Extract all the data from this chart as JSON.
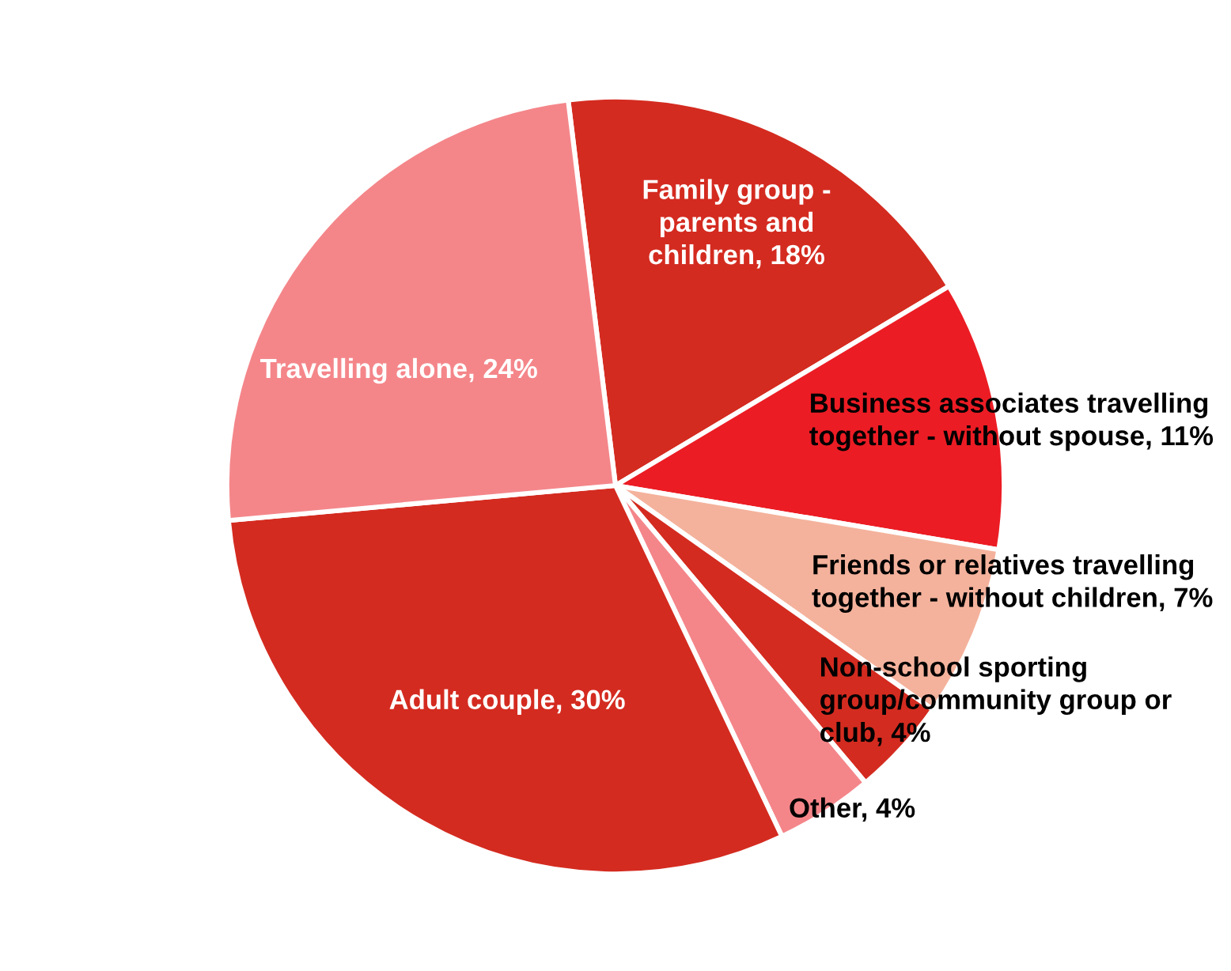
{
  "chart_data": {
    "type": "pie",
    "categories": [
      "Family group -\nparents and\nchildren",
      "Business associates travelling\ntogether - without spouse",
      "Friends or relatives travelling\ntogether - without children",
      "Non-school sporting\ngroup/community group or\nclub",
      "Other",
      "Adult couple",
      "Travelling alone"
    ],
    "values": [
      18,
      11,
      7,
      4,
      4,
      30,
      24
    ],
    "value_labels": [
      "18%",
      "11%",
      "7%",
      "4%",
      "4%",
      "30%",
      "24%"
    ],
    "colors": [
      "#d42b20",
      "#ec1c24",
      "#f4b29c",
      "#d42b20",
      "#f4868a",
      "#d42b20",
      "#f4868a"
    ],
    "legend": false
  }
}
